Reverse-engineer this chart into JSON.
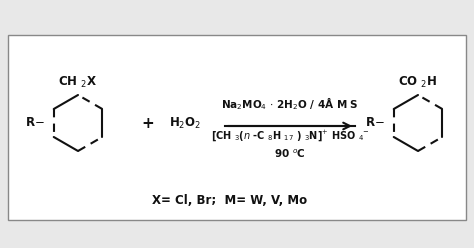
{
  "background_color": "#e8e8e8",
  "box_facecolor": "#ffffff",
  "border_color": "#888888",
  "reagent_line1": "Na$_2$MO$_4$ $\\cdot$ 2H$_2$O / 4Å M S",
  "reagent_line2": "[CH $_{3}$($n$ -C $_{8}$H $_{17}$ ) $_{3}$N]$^{+}$ HSO $_{4}$$^{-}$",
  "reagent_line3": "90 $^{o}$C",
  "conditions_line": "X= Cl, Br;  M= W, V, Mo",
  "plus_sign": "+",
  "h2o2_text": "H$_{2}$O$_{2}$",
  "ch2x_text": "CH $_{2}$X",
  "r_left": "R",
  "r_right": "R",
  "product_label": "CO $_{2}$H",
  "text_color": "#111111",
  "font_size_main": 8.5,
  "font_size_reagent": 7.5,
  "font_size_reagent2": 7.0,
  "font_size_cond": 8.5
}
